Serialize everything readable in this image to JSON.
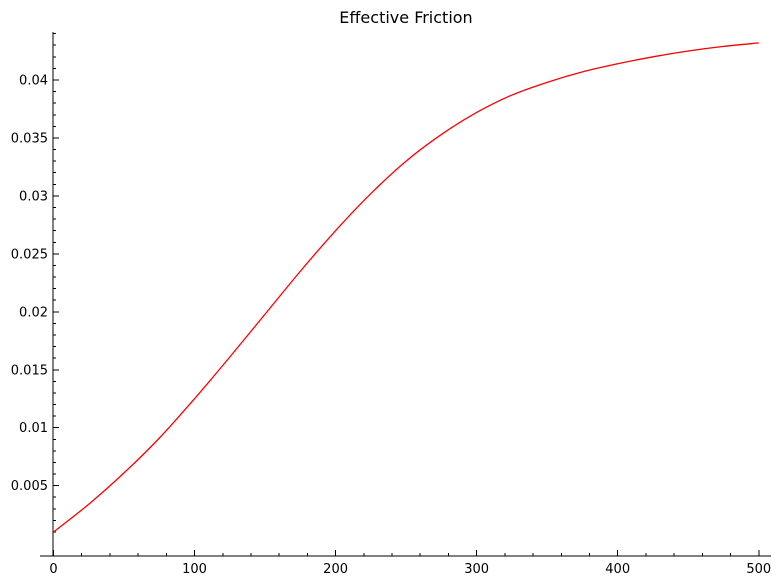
{
  "chart_data": {
    "type": "line",
    "title": "Effective Friction",
    "xlabel": "",
    "ylabel": "",
    "xlim": [
      0,
      510
    ],
    "ylim": [
      0,
      0.0445
    ],
    "x_ticks": [
      0,
      100,
      200,
      300,
      400,
      500
    ],
    "x_tick_labels": [
      "0",
      "100",
      "200",
      "300",
      "400",
      "500"
    ],
    "y_ticks": [
      0.005,
      0.01,
      0.015,
      0.02,
      0.025,
      0.03,
      0.035,
      0.04
    ],
    "y_tick_labels": [
      "0.005",
      "0.01",
      "0.015",
      "0.02",
      "0.025",
      "0.03",
      "0.035",
      "0.04"
    ],
    "grid": false,
    "series": [
      {
        "color": "#ff0000",
        "x": [
          0,
          25,
          50,
          75,
          100,
          125,
          150,
          175,
          200,
          225,
          250,
          275,
          300,
          325,
          350,
          375,
          400,
          425,
          450,
          475,
          500
        ],
        "y": [
          0.001,
          0.0034,
          0.0061,
          0.0091,
          0.0125,
          0.0161,
          0.0198,
          0.0235,
          0.027,
          0.0302,
          0.033,
          0.0353,
          0.0372,
          0.0387,
          0.0398,
          0.0407,
          0.0414,
          0.042,
          0.0425,
          0.0429,
          0.0432
        ]
      }
    ]
  }
}
